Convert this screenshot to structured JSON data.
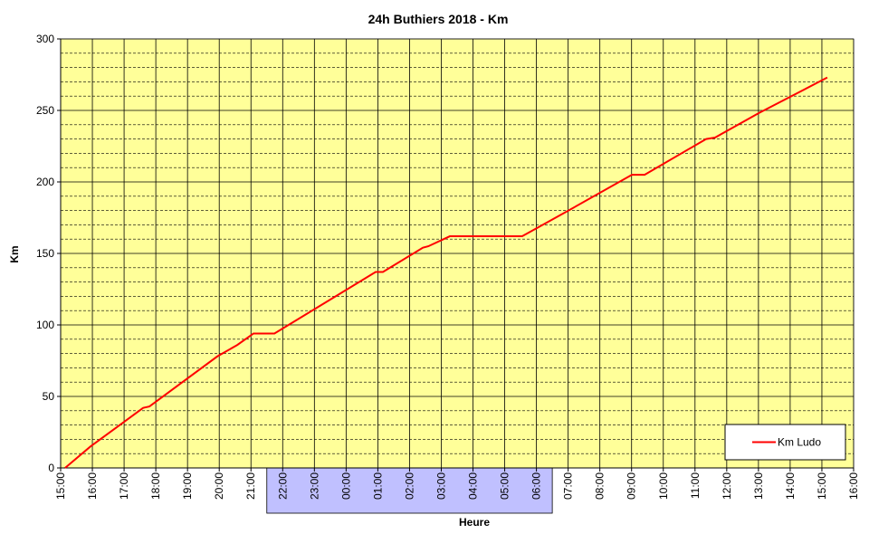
{
  "chart_data": {
    "type": "line",
    "title": "24h Buthiers 2018 - Km",
    "xlabel": "Heure",
    "ylabel": "Km",
    "series": [
      {
        "name": "Km Ludo",
        "color": "#ff0000",
        "x": [
          15.14,
          15.94,
          17.6,
          17.8,
          19.94,
          20.57,
          21.08,
          21.74,
          24.93,
          25.16,
          26.42,
          26.59,
          27.27,
          29.55,
          31.01,
          33.01,
          33.41,
          35.35,
          35.63,
          37.0,
          39.17
        ],
        "values": [
          0,
          15,
          42,
          43,
          78,
          86,
          94,
          94,
          137,
          137,
          154,
          155,
          162,
          162,
          180,
          205,
          205,
          230,
          231,
          248,
          273
        ]
      }
    ],
    "xlim": [
      15,
      40
    ],
    "xticks": [
      {
        "value": 15,
        "label": "15:00"
      },
      {
        "value": 16,
        "label": "16:00"
      },
      {
        "value": 17,
        "label": "17:00"
      },
      {
        "value": 18,
        "label": "18:00"
      },
      {
        "value": 19,
        "label": "19:00"
      },
      {
        "value": 20,
        "label": "20:00"
      },
      {
        "value": 21,
        "label": "21:00"
      },
      {
        "value": 22,
        "label": "22:00"
      },
      {
        "value": 23,
        "label": "23:00"
      },
      {
        "value": 24,
        "label": "00:00"
      },
      {
        "value": 25,
        "label": "01:00"
      },
      {
        "value": 26,
        "label": "02:00"
      },
      {
        "value": 27,
        "label": "03:00"
      },
      {
        "value": 28,
        "label": "04:00"
      },
      {
        "value": 29,
        "label": "05:00"
      },
      {
        "value": 30,
        "label": "06:00"
      },
      {
        "value": 31,
        "label": "07:00"
      },
      {
        "value": 32,
        "label": "08:00"
      },
      {
        "value": 33,
        "label": "09:00"
      },
      {
        "value": 34,
        "label": "10:00"
      },
      {
        "value": 35,
        "label": "11:00"
      },
      {
        "value": 36,
        "label": "12:00"
      },
      {
        "value": 37,
        "label": "13:00"
      },
      {
        "value": 38,
        "label": "14:00"
      },
      {
        "value": 39,
        "label": "15:00"
      },
      {
        "value": 40,
        "label": "16:00"
      }
    ],
    "ylim": [
      0,
      300
    ],
    "yticks": [
      0,
      50,
      100,
      150,
      200,
      250,
      300
    ],
    "yminor_ticks": [
      10,
      20,
      30,
      40,
      60,
      70,
      80,
      90,
      110,
      120,
      130,
      140,
      160,
      170,
      180,
      190,
      210,
      220,
      230,
      240,
      260,
      270,
      280,
      290
    ],
    "night": [
      21.5,
      30.5
    ],
    "grid": true,
    "legend": "lower right",
    "plot_color": "#ffff99",
    "night_color": "#c0c0ff"
  }
}
